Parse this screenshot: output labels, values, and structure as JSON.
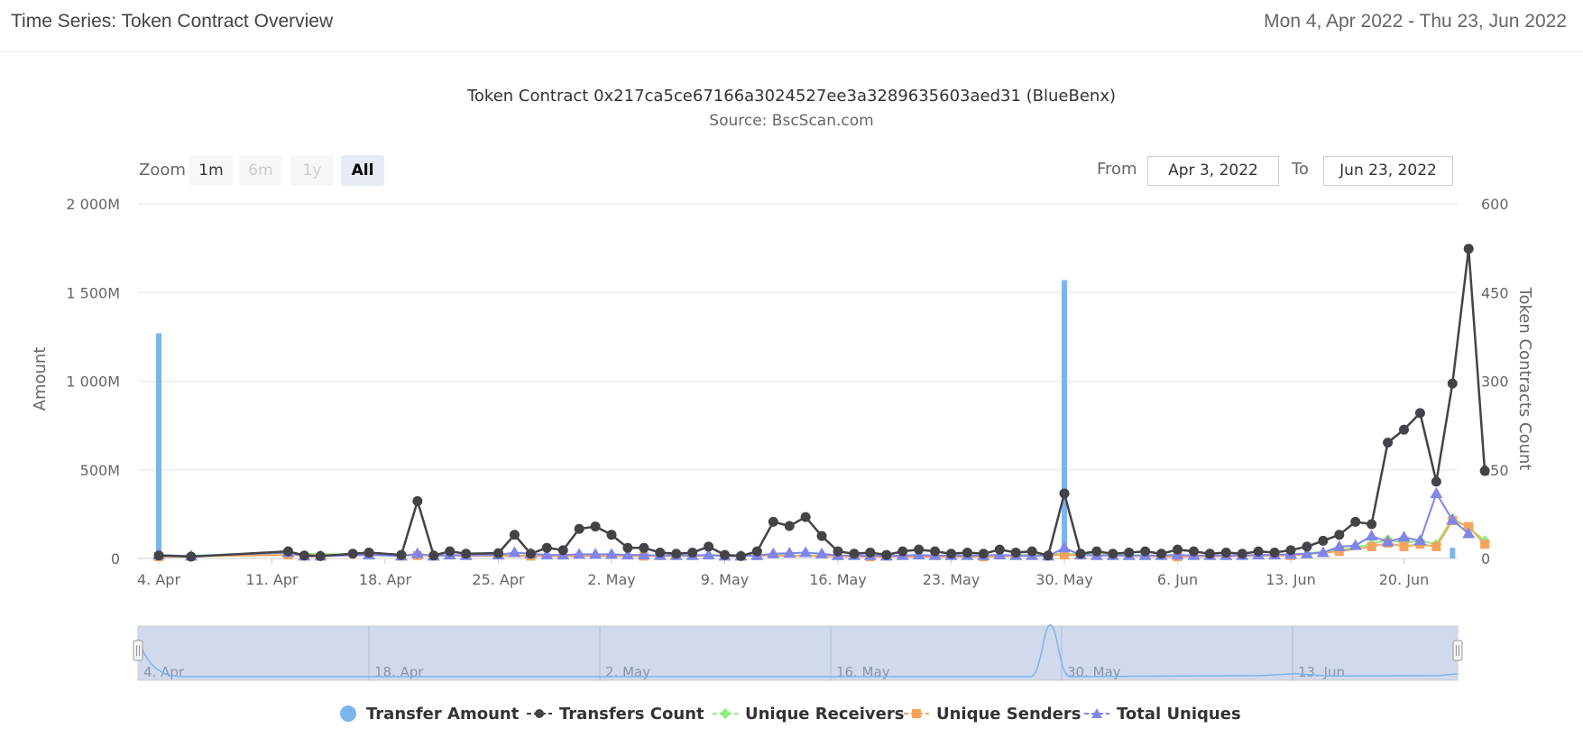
{
  "header": {
    "title": "Time Series: Token Contract Overview",
    "date_range": "Mon 4, Apr 2022 - Thu 23, Jun 2022"
  },
  "zoom": {
    "label": "Zoom",
    "buttons": [
      "1m",
      "6m",
      "1y",
      "All"
    ],
    "active": "All"
  },
  "range_selector": {
    "from_label": "From",
    "from_value": "Apr 3, 2022",
    "to_label": "To",
    "to_value": "Jun 23, 2022"
  },
  "chart_data": {
    "type": "line",
    "title": "Token Contract 0x217ca5ce67166a3024527ee3a3289635603aed31 (BlueBenx)",
    "subtitle": "Source: BscScan.com",
    "x_ticks": [
      "4. Apr",
      "11. Apr",
      "18. Apr",
      "25. Apr",
      "2. May",
      "9. May",
      "16. May",
      "23. May",
      "30. May",
      "6. Jun",
      "13. Jun",
      "20. Jun"
    ],
    "x_range": [
      "2022-04-04",
      "2022-06-23"
    ],
    "y_left": {
      "label": "Amount",
      "ticks": [
        "0",
        "500M",
        "1 000M",
        "1 500M",
        "2 000M"
      ],
      "range": [
        0,
        2000
      ]
    },
    "y_right": {
      "label": "Token Contracts Count",
      "ticks": [
        "0",
        "150",
        "300",
        "450",
        "600"
      ],
      "range": [
        0,
        600
      ]
    },
    "grid": true,
    "legend_position": "bottom",
    "series": [
      {
        "name": "Transfer Amount",
        "axis": "left",
        "color": "#7cb5ec",
        "points": [
          [
            "2022-04-04",
            1270
          ],
          [
            "2022-05-30",
            1570
          ],
          [
            "2022-06-23",
            60
          ]
        ]
      },
      {
        "name": "Transfers Count",
        "axis": "right",
        "color": "#434348",
        "points": [
          [
            "2022-04-04",
            5
          ],
          [
            "2022-04-06",
            3
          ],
          [
            "2022-04-12",
            12
          ],
          [
            "2022-04-13",
            5
          ],
          [
            "2022-04-14",
            4
          ],
          [
            "2022-04-16",
            8
          ],
          [
            "2022-04-17",
            10
          ],
          [
            "2022-04-19",
            6
          ],
          [
            "2022-04-20",
            97
          ],
          [
            "2022-04-21",
            5
          ],
          [
            "2022-04-22",
            12
          ],
          [
            "2022-04-23",
            8
          ],
          [
            "2022-04-25",
            9
          ],
          [
            "2022-04-26",
            40
          ],
          [
            "2022-04-27",
            8
          ],
          [
            "2022-04-28",
            18
          ],
          [
            "2022-04-29",
            14
          ],
          [
            "2022-04-30",
            50
          ],
          [
            "2022-05-01",
            54
          ],
          [
            "2022-05-02",
            40
          ],
          [
            "2022-05-03",
            18
          ],
          [
            "2022-05-04",
            18
          ],
          [
            "2022-05-05",
            10
          ],
          [
            "2022-05-06",
            8
          ],
          [
            "2022-05-07",
            10
          ],
          [
            "2022-05-08",
            20
          ],
          [
            "2022-05-09",
            6
          ],
          [
            "2022-05-10",
            4
          ],
          [
            "2022-05-11",
            12
          ],
          [
            "2022-05-12",
            62
          ],
          [
            "2022-05-13",
            55
          ],
          [
            "2022-05-14",
            70
          ],
          [
            "2022-05-15",
            38
          ],
          [
            "2022-05-16",
            12
          ],
          [
            "2022-05-17",
            8
          ],
          [
            "2022-05-18",
            10
          ],
          [
            "2022-05-19",
            6
          ],
          [
            "2022-05-20",
            12
          ],
          [
            "2022-05-21",
            15
          ],
          [
            "2022-05-22",
            12
          ],
          [
            "2022-05-23",
            8
          ],
          [
            "2022-05-24",
            10
          ],
          [
            "2022-05-25",
            8
          ],
          [
            "2022-05-26",
            15
          ],
          [
            "2022-05-27",
            10
          ],
          [
            "2022-05-28",
            12
          ],
          [
            "2022-05-29",
            5
          ],
          [
            "2022-05-30",
            110
          ],
          [
            "2022-05-31",
            8
          ],
          [
            "2022-06-01",
            12
          ],
          [
            "2022-06-02",
            8
          ],
          [
            "2022-06-03",
            10
          ],
          [
            "2022-06-04",
            12
          ],
          [
            "2022-06-05",
            8
          ],
          [
            "2022-06-06",
            15
          ],
          [
            "2022-06-07",
            12
          ],
          [
            "2022-06-08",
            8
          ],
          [
            "2022-06-09",
            10
          ],
          [
            "2022-06-10",
            8
          ],
          [
            "2022-06-11",
            12
          ],
          [
            "2022-06-12",
            10
          ],
          [
            "2022-06-13",
            14
          ],
          [
            "2022-06-14",
            20
          ],
          [
            "2022-06-15",
            30
          ],
          [
            "2022-06-16",
            40
          ],
          [
            "2022-06-17",
            62
          ],
          [
            "2022-06-18",
            58
          ],
          [
            "2022-06-19",
            196
          ],
          [
            "2022-06-20",
            218
          ],
          [
            "2022-06-21",
            246
          ],
          [
            "2022-06-22",
            130
          ],
          [
            "2022-06-23",
            296
          ],
          [
            "2022-06-24",
            524
          ],
          [
            "2022-06-25",
            148
          ]
        ]
      },
      {
        "name": "Unique Receivers",
        "axis": "right",
        "color": "#90ed7d",
        "points": [
          [
            "2022-04-04",
            4
          ],
          [
            "2022-04-12",
            8
          ],
          [
            "2022-04-20",
            6
          ],
          [
            "2022-04-27",
            5
          ],
          [
            "2022-05-04",
            5
          ],
          [
            "2022-05-11",
            6
          ],
          [
            "2022-05-18",
            4
          ],
          [
            "2022-05-25",
            4
          ],
          [
            "2022-05-30",
            8
          ],
          [
            "2022-06-06",
            4
          ],
          [
            "2022-06-13",
            6
          ],
          [
            "2022-06-16",
            14
          ],
          [
            "2022-06-18",
            24
          ],
          [
            "2022-06-19",
            32
          ],
          [
            "2022-06-20",
            26
          ],
          [
            "2022-06-21",
            30
          ],
          [
            "2022-06-22",
            24
          ],
          [
            "2022-06-23",
            68
          ],
          [
            "2022-06-24",
            52
          ],
          [
            "2022-06-25",
            30
          ]
        ]
      },
      {
        "name": "Unique Senders",
        "axis": "right",
        "color": "#f7a35c",
        "points": [
          [
            "2022-04-04",
            3
          ],
          [
            "2022-04-12",
            6
          ],
          [
            "2022-04-20",
            5
          ],
          [
            "2022-04-27",
            4
          ],
          [
            "2022-05-04",
            4
          ],
          [
            "2022-05-11",
            5
          ],
          [
            "2022-05-18",
            3
          ],
          [
            "2022-05-25",
            3
          ],
          [
            "2022-05-30",
            6
          ],
          [
            "2022-06-06",
            3
          ],
          [
            "2022-06-13",
            5
          ],
          [
            "2022-06-16",
            12
          ],
          [
            "2022-06-18",
            20
          ],
          [
            "2022-06-19",
            26
          ],
          [
            "2022-06-20",
            20
          ],
          [
            "2022-06-21",
            24
          ],
          [
            "2022-06-22",
            20
          ],
          [
            "2022-06-23",
            64
          ],
          [
            "2022-06-24",
            54
          ],
          [
            "2022-06-25",
            24
          ]
        ]
      },
      {
        "name": "Total Uniques",
        "axis": "right",
        "color": "#8085e9",
        "points": [
          [
            "2022-04-04",
            6
          ],
          [
            "2022-04-06",
            4
          ],
          [
            "2022-04-12",
            10
          ],
          [
            "2022-04-13",
            4
          ],
          [
            "2022-04-14",
            4
          ],
          [
            "2022-04-17",
            6
          ],
          [
            "2022-04-19",
            4
          ],
          [
            "2022-04-20",
            8
          ],
          [
            "2022-04-21",
            4
          ],
          [
            "2022-04-22",
            6
          ],
          [
            "2022-04-23",
            5
          ],
          [
            "2022-04-25",
            6
          ],
          [
            "2022-04-26",
            10
          ],
          [
            "2022-04-27",
            8
          ],
          [
            "2022-04-28",
            6
          ],
          [
            "2022-04-29",
            6
          ],
          [
            "2022-04-30",
            7
          ],
          [
            "2022-05-01",
            7
          ],
          [
            "2022-05-02",
            7
          ],
          [
            "2022-05-03",
            6
          ],
          [
            "2022-05-04",
            6
          ],
          [
            "2022-05-05",
            5
          ],
          [
            "2022-05-06",
            5
          ],
          [
            "2022-05-07",
            5
          ],
          [
            "2022-05-08",
            6
          ],
          [
            "2022-05-09",
            4
          ],
          [
            "2022-05-10",
            4
          ],
          [
            "2022-05-11",
            5
          ],
          [
            "2022-05-12",
            8
          ],
          [
            "2022-05-13",
            9
          ],
          [
            "2022-05-14",
            10
          ],
          [
            "2022-05-15",
            8
          ],
          [
            "2022-05-16",
            5
          ],
          [
            "2022-05-17",
            5
          ],
          [
            "2022-05-18",
            5
          ],
          [
            "2022-05-19",
            4
          ],
          [
            "2022-05-20",
            5
          ],
          [
            "2022-05-21",
            6
          ],
          [
            "2022-05-22",
            5
          ],
          [
            "2022-05-23",
            5
          ],
          [
            "2022-05-24",
            5
          ],
          [
            "2022-05-25",
            5
          ],
          [
            "2022-05-26",
            6
          ],
          [
            "2022-05-27",
            5
          ],
          [
            "2022-05-28",
            5
          ],
          [
            "2022-05-29",
            4
          ],
          [
            "2022-05-30",
            18
          ],
          [
            "2022-05-31",
            6
          ],
          [
            "2022-06-01",
            5
          ],
          [
            "2022-06-02",
            5
          ],
          [
            "2022-06-03",
            5
          ],
          [
            "2022-06-04",
            5
          ],
          [
            "2022-06-05",
            5
          ],
          [
            "2022-06-06",
            6
          ],
          [
            "2022-06-07",
            5
          ],
          [
            "2022-06-08",
            5
          ],
          [
            "2022-06-09",
            5
          ],
          [
            "2022-06-10",
            5
          ],
          [
            "2022-06-11",
            6
          ],
          [
            "2022-06-12",
            6
          ],
          [
            "2022-06-13",
            7
          ],
          [
            "2022-06-14",
            8
          ],
          [
            "2022-06-15",
            10
          ],
          [
            "2022-06-16",
            20
          ],
          [
            "2022-06-17",
            22
          ],
          [
            "2022-06-18",
            38
          ],
          [
            "2022-06-19",
            28
          ],
          [
            "2022-06-20",
            36
          ],
          [
            "2022-06-21",
            30
          ],
          [
            "2022-06-22",
            110
          ],
          [
            "2022-06-23",
            65
          ],
          [
            "2022-06-24",
            42
          ]
        ]
      }
    ],
    "navigator": {
      "x_ticks": [
        "4. Apr",
        "18. Apr",
        "2. May",
        "16. May",
        "30. May",
        "13. Jun"
      ]
    }
  },
  "icons": {
    "legend_circle": "circle-icon",
    "legend_diamond": "diamond-icon",
    "legend_square": "square-icon",
    "legend_triangle": "triangle-icon",
    "navigator_handle": "grip-handle-icon"
  }
}
